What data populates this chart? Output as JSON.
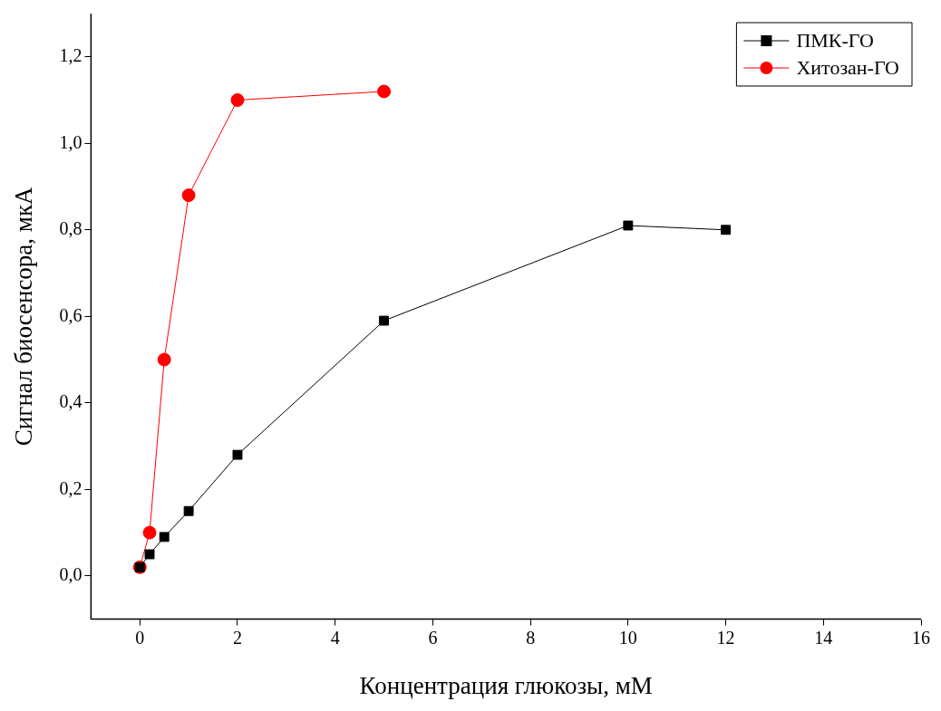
{
  "chart_data": {
    "type": "line",
    "xlabel": "Концентрация глюкозы, мМ",
    "ylabel": "Сигнал биосенсора, мкА",
    "xlim": [
      -1,
      16
    ],
    "xticks": [
      0,
      2,
      4,
      6,
      8,
      10,
      12,
      14,
      16
    ],
    "ylim": [
      -0.1,
      1.3
    ],
    "yticks": [
      {
        "value": 0,
        "label": "0,0"
      },
      {
        "value": 0.2,
        "label": "0,2"
      },
      {
        "value": 0.4,
        "label": "0,4"
      },
      {
        "value": 0.6,
        "label": "0,6"
      },
      {
        "value": 0.8,
        "label": "0,8"
      },
      {
        "value": 1.0,
        "label": "1,0"
      },
      {
        "value": 1.2,
        "label": "1,2"
      }
    ],
    "grid": false,
    "legend": "top right",
    "series": [
      {
        "name": "ПМК-ГО",
        "color": "#000000",
        "marker": "square",
        "x": [
          0,
          0.2,
          0.5,
          1,
          2,
          5,
          10,
          12
        ],
        "values": [
          0.02,
          0.05,
          0.09,
          0.15,
          0.28,
          0.59,
          0.81,
          0.8
        ]
      },
      {
        "name": "Хитозан-ГО",
        "color": "#ff0000",
        "marker": "circle",
        "x": [
          0,
          0.2,
          0.5,
          1,
          2,
          5
        ],
        "values": [
          0.02,
          0.1,
          0.5,
          0.88,
          1.1,
          1.12
        ]
      }
    ]
  }
}
